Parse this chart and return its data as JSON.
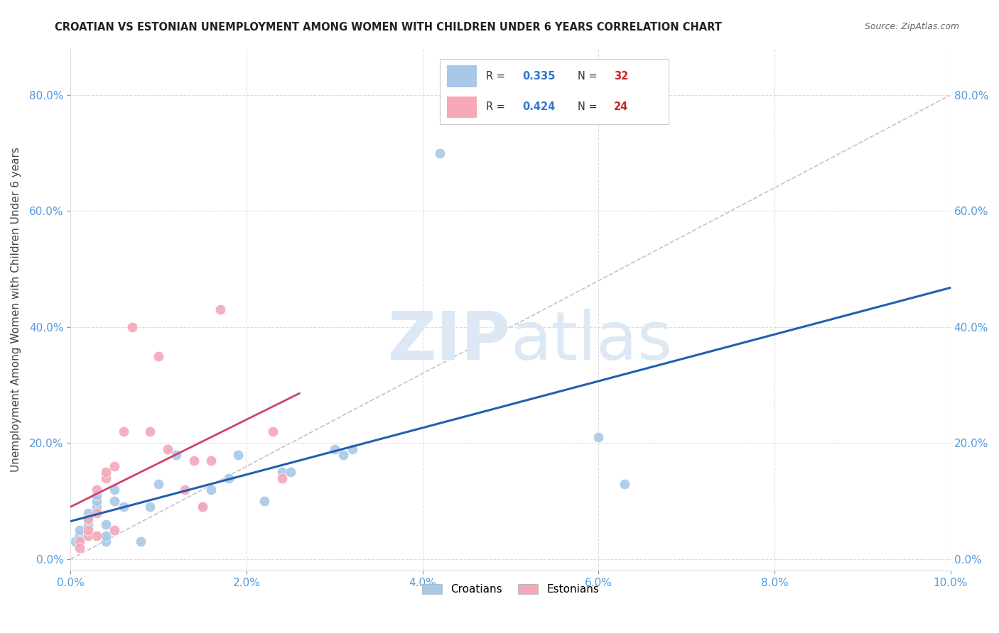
{
  "title": "CROATIAN VS ESTONIAN UNEMPLOYMENT AMONG WOMEN WITH CHILDREN UNDER 6 YEARS CORRELATION CHART",
  "source": "Source: ZipAtlas.com",
  "ylabel": "Unemployment Among Women with Children Under 6 years",
  "xlim": [
    0.0,
    0.1
  ],
  "ylim": [
    -0.02,
    0.88
  ],
  "x_ticks": [
    0.0,
    0.02,
    0.04,
    0.06,
    0.08,
    0.1
  ],
  "y_ticks": [
    0.0,
    0.2,
    0.4,
    0.6,
    0.8
  ],
  "croatians_x": [
    0.0005,
    0.001,
    0.001,
    0.002,
    0.002,
    0.002,
    0.003,
    0.003,
    0.003,
    0.004,
    0.004,
    0.004,
    0.005,
    0.005,
    0.006,
    0.008,
    0.009,
    0.01,
    0.012,
    0.015,
    0.016,
    0.018,
    0.019,
    0.022,
    0.024,
    0.025,
    0.03,
    0.031,
    0.032,
    0.042,
    0.06,
    0.063
  ],
  "croatians_y": [
    0.03,
    0.04,
    0.05,
    0.06,
    0.07,
    0.08,
    0.09,
    0.1,
    0.11,
    0.03,
    0.04,
    0.06,
    0.1,
    0.12,
    0.09,
    0.03,
    0.09,
    0.13,
    0.18,
    0.09,
    0.12,
    0.14,
    0.18,
    0.1,
    0.15,
    0.15,
    0.19,
    0.18,
    0.19,
    0.7,
    0.21,
    0.13
  ],
  "estonians_x": [
    0.001,
    0.001,
    0.002,
    0.002,
    0.002,
    0.003,
    0.003,
    0.003,
    0.004,
    0.004,
    0.005,
    0.005,
    0.006,
    0.007,
    0.009,
    0.01,
    0.011,
    0.013,
    0.014,
    0.015,
    0.016,
    0.017,
    0.023,
    0.024
  ],
  "estonians_y": [
    0.03,
    0.02,
    0.04,
    0.05,
    0.07,
    0.04,
    0.08,
    0.12,
    0.14,
    0.15,
    0.16,
    0.05,
    0.22,
    0.4,
    0.22,
    0.35,
    0.19,
    0.12,
    0.17,
    0.09,
    0.17,
    0.43,
    0.22,
    0.14
  ],
  "croatian_R": 0.335,
  "croatian_N": 32,
  "estonian_R": 0.424,
  "estonian_N": 24,
  "blue_scatter_color": "#a8c8e8",
  "pink_scatter_color": "#f4a8b8",
  "blue_line_color": "#2060b0",
  "pink_line_color": "#d04070",
  "dashed_line_color": "#c8c0c8",
  "watermark_color": "#dce8f4",
  "background_color": "#ffffff",
  "grid_color": "#dddddd",
  "tick_color": "#5599dd",
  "title_color": "#222222",
  "legend_N_color": "#cc2222",
  "legend_R_color": "#3377cc"
}
